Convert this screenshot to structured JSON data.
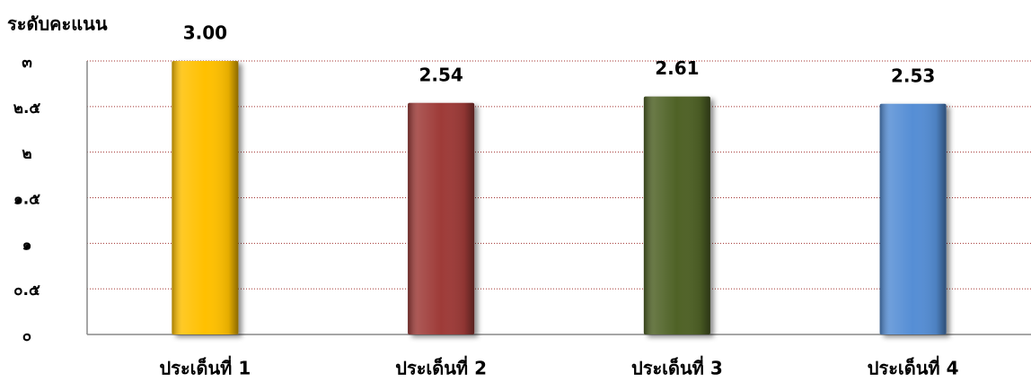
{
  "chart_data": {
    "type": "bar",
    "y_axis_label": "ระดับคะแนน",
    "categories": [
      "ประเด็นที่ 1",
      "ประเด็นที่ 2",
      "ประเด็นที่ 3",
      "ประเด็นที่ 4"
    ],
    "values": [
      3.0,
      2.54,
      2.61,
      2.53
    ],
    "value_labels": [
      "3.00",
      "2.54",
      "2.61",
      "2.53"
    ],
    "colors": [
      "#ffc000",
      "#9e3a38",
      "#4f6228",
      "#558ed5"
    ],
    "ylim": [
      0,
      3
    ],
    "yticks": [
      {
        "value": 0,
        "label": "๐"
      },
      {
        "value": 0.5,
        "label": "๐.๕"
      },
      {
        "value": 1,
        "label": "๑"
      },
      {
        "value": 1.5,
        "label": "๑.๕"
      },
      {
        "value": 2,
        "label": "๒"
      },
      {
        "value": 2.5,
        "label": "๒.๕"
      },
      {
        "value": 3,
        "label": "๓"
      }
    ],
    "grid": true
  }
}
